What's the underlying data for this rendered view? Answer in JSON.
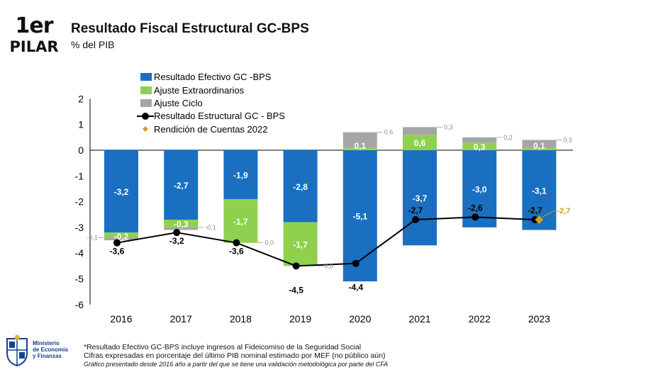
{
  "header": {
    "badge_top": "1er",
    "badge_bottom": "PILAR",
    "title": "Resultado Fiscal Estructural GC-BPS",
    "subtitle": "% del PIB"
  },
  "legend": {
    "efectivo": "Resultado Efectivo GC -BPS",
    "extra": "Ajuste Extraordinarios",
    "ciclo": "Ajuste Ciclo",
    "estructural": "Resultado Estructural GC - BPS",
    "rendicion": "Rendición de Cuentas 2022"
  },
  "colors": {
    "efectivo": "#1a6fc1",
    "extra": "#8fd14f",
    "ciclo": "#a6a6a6",
    "estructural": "#000000",
    "rendicion": "#c9a227"
  },
  "chart_data": {
    "type": "bar",
    "categories": [
      "2016",
      "2017",
      "2018",
      "2019",
      "2020",
      "2021",
      "2022",
      "2023"
    ],
    "ylim": [
      -6,
      2
    ],
    "yticks": [
      "2",
      "1",
      "0",
      "-1",
      "-2",
      "-3",
      "-4",
      "-5",
      "-6"
    ],
    "series": [
      {
        "name": "Resultado Efectivo GC -BPS",
        "values": [
          -3.2,
          -2.7,
          -1.9,
          -2.8,
          -5.1,
          -3.7,
          -3.0,
          -3.1
        ],
        "labels": [
          "-3,2",
          "-2,7",
          "-1,9",
          "-2,8",
          "-5,1",
          "-3,7",
          "-3,0",
          "-3,1"
        ]
      },
      {
        "name": "Ajuste Extraordinarios",
        "values": [
          -0.2,
          -0.3,
          -1.7,
          -1.7,
          0.1,
          0.6,
          0.3,
          0.1
        ],
        "labels": [
          "-0,2",
          "-0,3",
          "-1,7",
          "-1,7",
          "0,1",
          "0,6",
          "0,3",
          "0,1"
        ]
      },
      {
        "name": "Ajuste Ciclo",
        "values": [
          -0.1,
          -0.1,
          0.0,
          0.0,
          0.6,
          0.3,
          0.2,
          0.3
        ],
        "labels": [
          "-0,1",
          "-0,1",
          "0,0",
          "0,0",
          "0,6",
          "0,3",
          "0,2",
          "0,3"
        ]
      },
      {
        "name": "Resultado Estructural GC - BPS",
        "values": [
          -3.6,
          -3.2,
          -3.6,
          -4.5,
          -4.4,
          -2.7,
          -2.6,
          -2.7
        ],
        "labels": [
          "-3,6",
          "-3,2",
          "-3,6",
          "-4,5",
          "-4,4",
          "-2,7",
          "-2,6",
          "-2,7"
        ]
      },
      {
        "name": "Rendición de Cuentas 2022",
        "x": "2023",
        "value": -2.7,
        "label": "-2,7"
      }
    ]
  },
  "footer": {
    "ministry_line1": "Ministerio",
    "ministry_line2": "de Economía",
    "ministry_line3": "y Finanzas",
    "note1": "*Resultado Efectivo GC-BPS incluye ingresos al Fideicomiso de la Seguridad Social",
    "note2": "Cifras expresadas en porcentaje del último PIB nominal estimado por MEF (no público aún)",
    "note3": "Gráfico presentado desde 2016 año a partir del que se tiene una validación metodológica por parte del CFA"
  }
}
